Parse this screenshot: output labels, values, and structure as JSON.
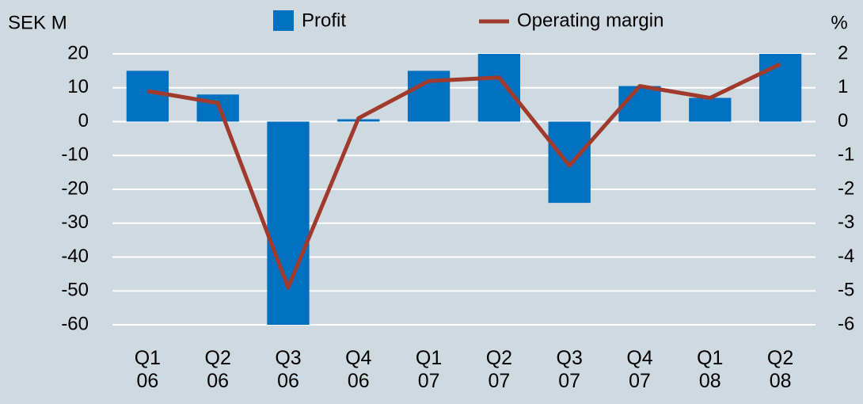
{
  "chart_data": {
    "type": "bar-line",
    "y_label": "SEK M",
    "y2_label": "%",
    "categories": [
      "Q1\n06",
      "Q2\n06",
      "Q3\n06",
      "Q4\n06",
      "Q1\n07",
      "Q2\n07",
      "Q3\n07",
      "Q4\n07",
      "Q1\n08",
      "Q2\n08"
    ],
    "series": [
      {
        "name": "Profit",
        "type": "bar",
        "color": "#0070c0",
        "values": [
          15,
          8,
          -60,
          0.7,
          15,
          20,
          -24,
          10.5,
          7,
          20
        ]
      },
      {
        "name": "Operating margin",
        "type": "line",
        "axis": "y2",
        "color": "#a03a2c",
        "values": [
          0.9,
          0.55,
          -4.9,
          0.1,
          1.2,
          1.3,
          -1.3,
          1.05,
          0.7,
          1.7
        ]
      }
    ],
    "ylim": [
      -60,
      20
    ],
    "yticks": [
      20,
      10,
      0,
      -10,
      -20,
      -30,
      -40,
      -50,
      -60
    ],
    "y2lim": [
      -6,
      2
    ],
    "y2ticks": [
      2,
      1,
      0,
      -1,
      -2,
      -3,
      -4,
      -5,
      -6
    ],
    "grid": true
  }
}
